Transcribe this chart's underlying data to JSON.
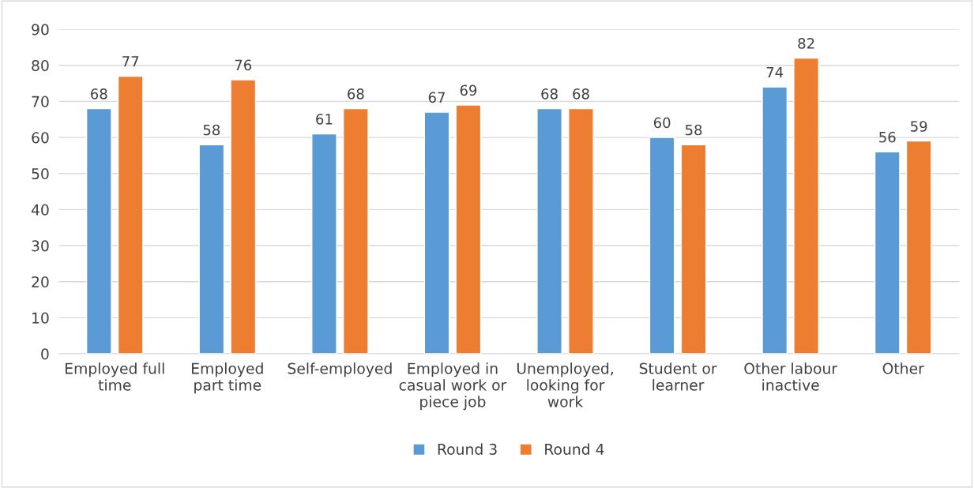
{
  "chart_data": {
    "type": "bar",
    "categories": [
      "Employed full\ntime",
      "Employed\npart time",
      "Self-employed",
      "Employed in\ncasual work or\npiece job",
      "Unemployed,\nlooking for\nwork",
      "Student or\nlearner",
      "Other labour\ninactive",
      "Other"
    ],
    "series": [
      {
        "name": "Round 3",
        "color": "#5b9bd5",
        "values": [
          68,
          58,
          61,
          67,
          68,
          60,
          74,
          56
        ]
      },
      {
        "name": "Round 4",
        "color": "#ed7d31",
        "values": [
          77,
          76,
          68,
          69,
          68,
          58,
          82,
          59
        ]
      }
    ],
    "ylim": [
      0,
      90
    ],
    "yticks": [
      0,
      10,
      20,
      30,
      40,
      50,
      60,
      70,
      80,
      90
    ],
    "grid": "y",
    "legend": "bottom",
    "data_labels": true
  }
}
